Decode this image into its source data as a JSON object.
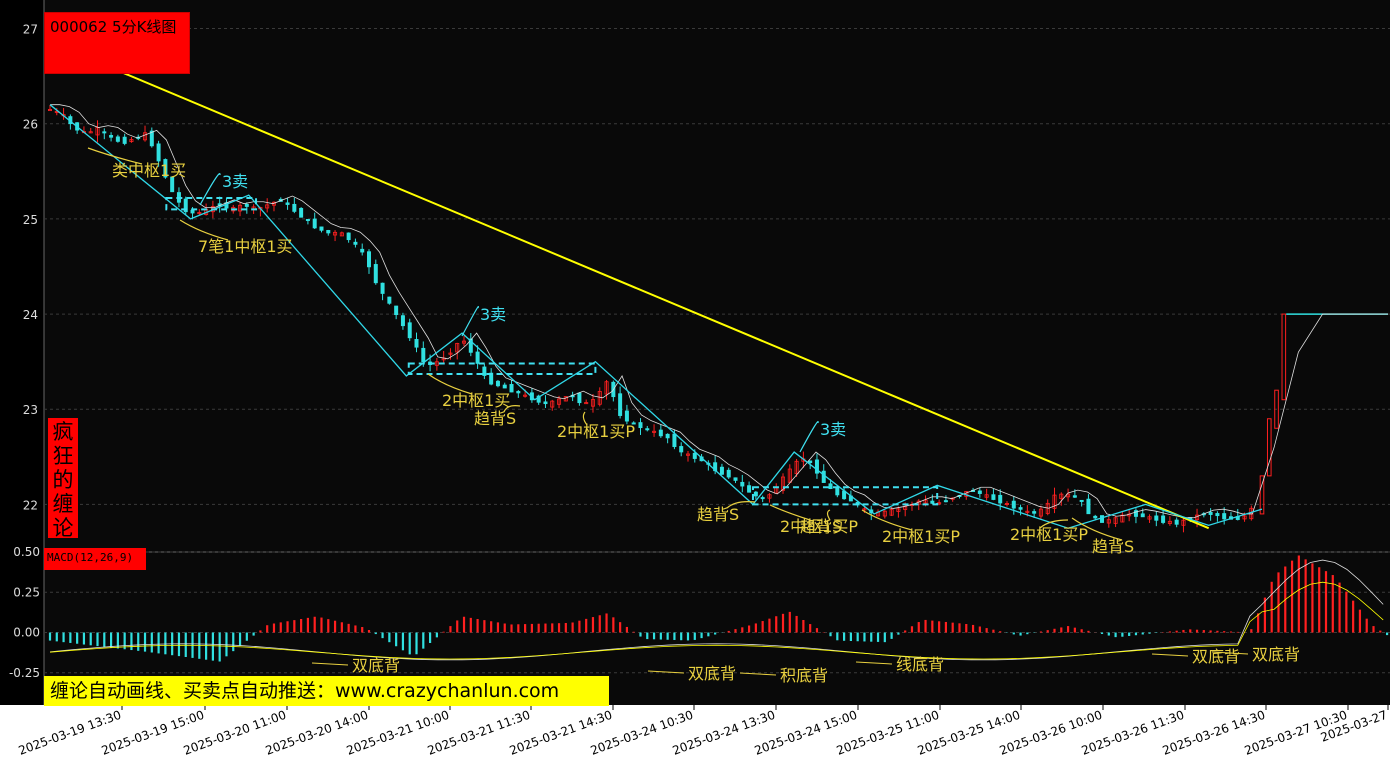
{
  "title": "000062 5分K线图",
  "brand": [
    "疯",
    "狂",
    "的",
    "缠",
    "论"
  ],
  "macd_label": "MACD(12,26,9)",
  "banner": "缠论自动画线、买卖点自动推送：www.crazychanlun.com",
  "colors": {
    "background": "#000000",
    "panel": "#090909",
    "grid": "#3a3a3a",
    "up": "#ff2020",
    "down": "#30e0e0",
    "stroke": "#30d8e8",
    "trend": "#ffff00",
    "annotation": "#e8d040",
    "sell": "#40e0f0",
    "ma": "#e0e0e0"
  },
  "chart_data": [
    {
      "type": "candlestick",
      "ylim": [
        21.5,
        27.3
      ],
      "yticks": [
        22,
        23,
        24,
        25,
        26,
        27
      ],
      "grid": true,
      "xticks": [
        "2025-03-19 13:30",
        "2025-03-19 15:00",
        "2025-03-20 11:00",
        "2025-03-20 14:00",
        "2025-03-21 10:00",
        "2025-03-21 11:30",
        "2025-03-21 14:30",
        "2025-03-24 10:30",
        "2025-03-24 13:30",
        "2025-03-24 15:00",
        "2025-03-25 11:00",
        "2025-03-25 14:00",
        "2025-03-26 10:00",
        "2025-03-26 11:30",
        "2025-03-26 14:30",
        "2025-03-27 10:30",
        "2025-03-27"
      ],
      "close_path": [
        [
          0,
          26.15
        ],
        [
          5,
          26.1
        ],
        [
          10,
          25.95
        ],
        [
          15,
          25.9
        ],
        [
          20,
          25.95
        ],
        [
          25,
          25.85
        ],
        [
          30,
          25.8
        ],
        [
          35,
          25.85
        ],
        [
          40,
          25.9
        ],
        [
          45,
          25.6
        ],
        [
          50,
          25.3
        ],
        [
          55,
          25.1
        ],
        [
          60,
          25.05
        ],
        [
          65,
          25.1
        ],
        [
          70,
          25.15
        ],
        [
          75,
          25.1
        ],
        [
          80,
          25.15
        ],
        [
          85,
          25.1
        ],
        [
          90,
          25.15
        ],
        [
          95,
          25.2
        ],
        [
          100,
          25.1
        ],
        [
          105,
          25.0
        ],
        [
          110,
          24.9
        ],
        [
          115,
          24.85
        ],
        [
          120,
          24.85
        ],
        [
          125,
          24.75
        ],
        [
          130,
          24.6
        ],
        [
          135,
          24.3
        ],
        [
          140,
          24.1
        ],
        [
          145,
          23.9
        ],
        [
          150,
          23.7
        ],
        [
          155,
          23.45
        ],
        [
          160,
          23.5
        ],
        [
          165,
          23.6
        ],
        [
          170,
          23.75
        ],
        [
          175,
          23.55
        ],
        [
          180,
          23.3
        ],
        [
          185,
          23.25
        ],
        [
          190,
          23.2
        ],
        [
          195,
          23.15
        ],
        [
          200,
          23.1
        ],
        [
          205,
          23.05
        ],
        [
          210,
          23.1
        ],
        [
          215,
          23.15
        ],
        [
          220,
          23.05
        ],
        [
          225,
          23.1
        ],
        [
          230,
          23.3
        ],
        [
          235,
          22.95
        ],
        [
          240,
          22.85
        ],
        [
          245,
          22.8
        ],
        [
          250,
          22.75
        ],
        [
          255,
          22.7
        ],
        [
          260,
          22.55
        ],
        [
          265,
          22.5
        ],
        [
          270,
          22.45
        ],
        [
          275,
          22.35
        ],
        [
          280,
          22.3
        ],
        [
          285,
          22.2
        ],
        [
          290,
          22.1
        ],
        [
          295,
          22.05
        ],
        [
          300,
          22.2
        ],
        [
          305,
          22.35
        ],
        [
          310,
          22.5
        ],
        [
          315,
          22.4
        ],
        [
          320,
          22.2
        ],
        [
          325,
          22.1
        ],
        [
          330,
          22.05
        ],
        [
          335,
          21.95
        ],
        [
          340,
          21.9
        ],
        [
          345,
          21.92
        ],
        [
          350,
          21.95
        ],
        [
          355,
          22.0
        ],
        [
          360,
          22.05
        ],
        [
          365,
          22.0
        ],
        [
          370,
          22.05
        ],
        [
          375,
          22.1
        ],
        [
          380,
          22.15
        ],
        [
          385,
          22.1
        ],
        [
          390,
          22.05
        ],
        [
          395,
          22.0
        ],
        [
          400,
          21.95
        ],
        [
          405,
          21.9
        ],
        [
          410,
          21.95
        ],
        [
          415,
          22.1
        ],
        [
          420,
          22.1
        ],
        [
          425,
          22.05
        ],
        [
          430,
          21.85
        ],
        [
          435,
          21.82
        ],
        [
          440,
          21.85
        ],
        [
          445,
          21.9
        ],
        [
          450,
          21.88
        ],
        [
          455,
          21.85
        ],
        [
          460,
          21.82
        ],
        [
          465,
          21.8
        ],
        [
          470,
          21.85
        ],
        [
          475,
          21.9
        ],
        [
          480,
          21.9
        ],
        [
          485,
          21.85
        ],
        [
          490,
          21.85
        ],
        [
          495,
          21.9
        ],
        [
          500,
          22.3
        ],
        [
          505,
          23.0
        ],
        [
          510,
          24.0
        ],
        [
          515,
          24.0
        ],
        [
          530,
          24.0
        ],
        [
          545,
          24.0
        ],
        [
          560,
          24.0
        ],
        [
          575,
          24.0
        ],
        [
          590,
          24.0
        ],
        [
          605,
          24.0
        ]
      ],
      "strokes": [
        [
          [
            26.2,
            0
          ],
          [
            25.0,
            58
          ],
          [
            25.25,
            82
          ],
          [
            23.35,
            147
          ],
          [
            23.8,
            170
          ],
          [
            23.1,
            200
          ],
          [
            23.5,
            225
          ],
          [
            22.0,
            290
          ],
          [
            22.55,
            307
          ],
          [
            21.9,
            340
          ],
          [
            22.2,
            366
          ],
          [
            21.75,
            420
          ],
          [
            22.0,
            452
          ],
          [
            21.78,
            478
          ],
          [
            21.95,
            500
          ]
        ]
      ],
      "trend_line": [
        [
          26.75,
          10
        ],
        [
          21.75,
          478
        ]
      ],
      "pivots": [
        {
          "from": 48,
          "to": 85,
          "top": 25.22,
          "bottom": 25.1
        },
        {
          "from": 148,
          "to": 225,
          "top": 23.48,
          "bottom": 23.37
        },
        {
          "from": 290,
          "to": 366,
          "top": 22.18,
          "bottom": 22.0
        }
      ],
      "annotations": [
        {
          "text": "类中枢1买",
          "kind": "buy"
        },
        {
          "text": "3卖",
          "kind": "sell"
        },
        {
          "text": "7笔1中枢1买",
          "kind": "buy"
        },
        {
          "text": "3卖",
          "kind": "sell"
        },
        {
          "text": "2中枢1买",
          "kind": "buy"
        },
        {
          "text": "趋背S",
          "kind": "buy"
        },
        {
          "text": "2中枢1买P",
          "kind": "buy"
        },
        {
          "text": "3卖",
          "kind": "sell"
        },
        {
          "text": "趋背S",
          "kind": "buy"
        },
        {
          "text": "2中枢1买P",
          "kind": "buy"
        },
        {
          "text": "趋背S",
          "kind": "buy"
        },
        {
          "text": "2中枢1买P",
          "kind": "buy"
        },
        {
          "text": "2中枢1买P",
          "kind": "buy"
        },
        {
          "text": "趋背S",
          "kind": "buy"
        },
        {
          "text": "2中枢1买P",
          "kind": "buy"
        }
      ]
    },
    {
      "type": "macd",
      "title": "MACD(12,26,9)",
      "ylim": [
        -0.45,
        0.5
      ],
      "yticks": [
        0.5,
        0.25,
        0.0,
        -0.25
      ],
      "ytick_labels": [
        "0.50",
        "0.25",
        "0.00",
        "-0.25"
      ],
      "annotations": [
        "双底背",
        "双底背",
        "积底背",
        "线底背",
        "双底背",
        "双底背"
      ]
    }
  ]
}
